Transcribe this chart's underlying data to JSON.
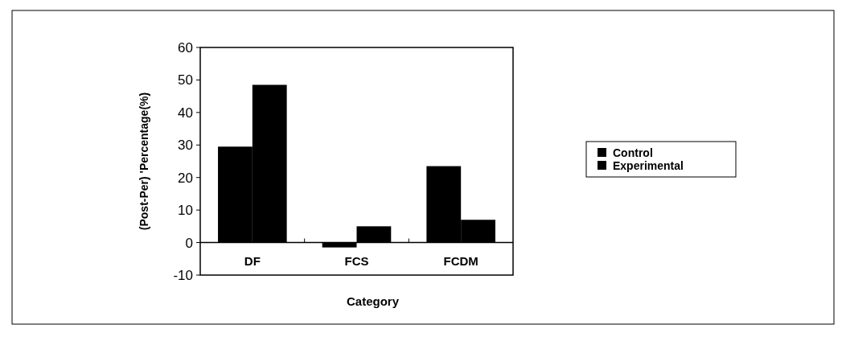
{
  "chart_data": {
    "type": "bar",
    "xlabel": "Category",
    "ylabel": "(Post-Per) 'Percentage(%)",
    "categories": [
      "DF",
      "FCS",
      "FCDM"
    ],
    "series": [
      {
        "name": "Control",
        "color": "#000000",
        "values": [
          29.5,
          -1.5,
          23.5
        ]
      },
      {
        "name": "Experimental",
        "color": "#000000",
        "values": [
          48.5,
          5,
          7
        ]
      }
    ],
    "ylim": [
      -10,
      60
    ],
    "yticks": [
      -10,
      0,
      10,
      20,
      30,
      40,
      50,
      60
    ],
    "legend": "right"
  }
}
